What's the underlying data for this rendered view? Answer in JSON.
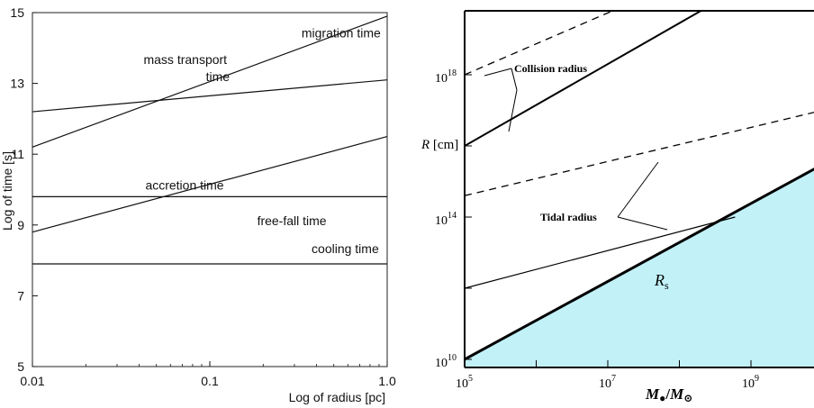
{
  "chart_data": [
    {
      "type": "line",
      "xlabel": "Log of radius [pc]",
      "ylabel": "Log of time [s]",
      "x_scale": "log",
      "xlim": [
        0.01,
        1.0
      ],
      "ylim": [
        5,
        15
      ],
      "x_ticks": [
        0.01,
        0.1,
        1.0
      ],
      "x_tick_labels": [
        "0.01",
        "0.1",
        "1.0"
      ],
      "y_ticks": [
        5,
        7,
        9,
        11,
        13,
        15
      ],
      "y_tick_labels": [
        "5",
        "7",
        "9",
        "11",
        "13",
        "15"
      ],
      "series": [
        {
          "name": "migration time",
          "label_lines": [
            "migration time"
          ],
          "x": [
            0.01,
            1.0
          ],
          "y": [
            11.2,
            14.9
          ]
        },
        {
          "name": "mass transport time",
          "label_lines": [
            "mass transport",
            "time"
          ],
          "x": [
            0.01,
            1.0
          ],
          "y": [
            12.2,
            13.1
          ]
        },
        {
          "name": "accretion time",
          "label_lines": [
            "accretion time"
          ],
          "x": [
            0.01,
            1.0
          ],
          "y": [
            9.8,
            9.8
          ]
        },
        {
          "name": "free-fall time",
          "label_lines": [
            "free-fall time"
          ],
          "x": [
            0.01,
            1.0
          ],
          "y": [
            8.8,
            11.5
          ]
        },
        {
          "name": "cooling time",
          "label_lines": [
            "cooling time"
          ],
          "x": [
            0.01,
            1.0
          ],
          "y": [
            7.9,
            7.9
          ]
        }
      ]
    },
    {
      "type": "line",
      "xlabel": "M●/M⊙",
      "ylabel": "R [cm]",
      "x_scale": "log",
      "y_scale": "log",
      "xlim": [
        100000.0,
        10000000000.0
      ],
      "ylim": [
        10000000000.0,
        1e+20
      ],
      "x_tick_labels": [
        {
          "base": "10",
          "exp": "5",
          "value": 100000.0
        },
        {
          "base": "10",
          "exp": "7",
          "value": 10000000.0
        },
        {
          "base": "10",
          "exp": "9",
          "value": 1000000000.0
        }
      ],
      "y_tick_labels": [
        {
          "base": "10",
          "exp": "10",
          "value": 10000000000.0
        },
        {
          "base": "10",
          "exp": "14",
          "value": 100000000000000.0
        },
        {
          "base": "10",
          "exp": "18",
          "value": 1e+18
        }
      ],
      "series": [
        {
          "name": "R_s",
          "style": "thick",
          "fill": "#c2f1f8",
          "x": [
            100000.0,
            10000000000.0
          ],
          "y": [
            10000000000.0,
            3000000000000000.0
          ]
        },
        {
          "style": "solid",
          "x": [
            100000.0,
            600000000.0
          ],
          "y": [
            1000000000000.0,
            100000000000000.0
          ]
        },
        {
          "style": "dashed",
          "x": [
            100000.0,
            10000000000.0
          ],
          "y": [
            400000000000000.0,
            1e+17
          ]
        },
        {
          "style": "solid",
          "x": [
            100000.0,
            300000000.0
          ],
          "y": [
            1e+16,
            1e+20
          ]
        },
        {
          "style": "dashed",
          "x": [
            100000.0,
            20000000.0
          ],
          "y": [
            1e+18,
            1e+20
          ]
        }
      ],
      "annotations": {
        "collision_radius": "Collision radius",
        "tidal_radius": "Tidal radius",
        "rs_base": "R",
        "rs_sub": "s"
      },
      "colors": {
        "fill": "#c2f1f8"
      }
    }
  ]
}
